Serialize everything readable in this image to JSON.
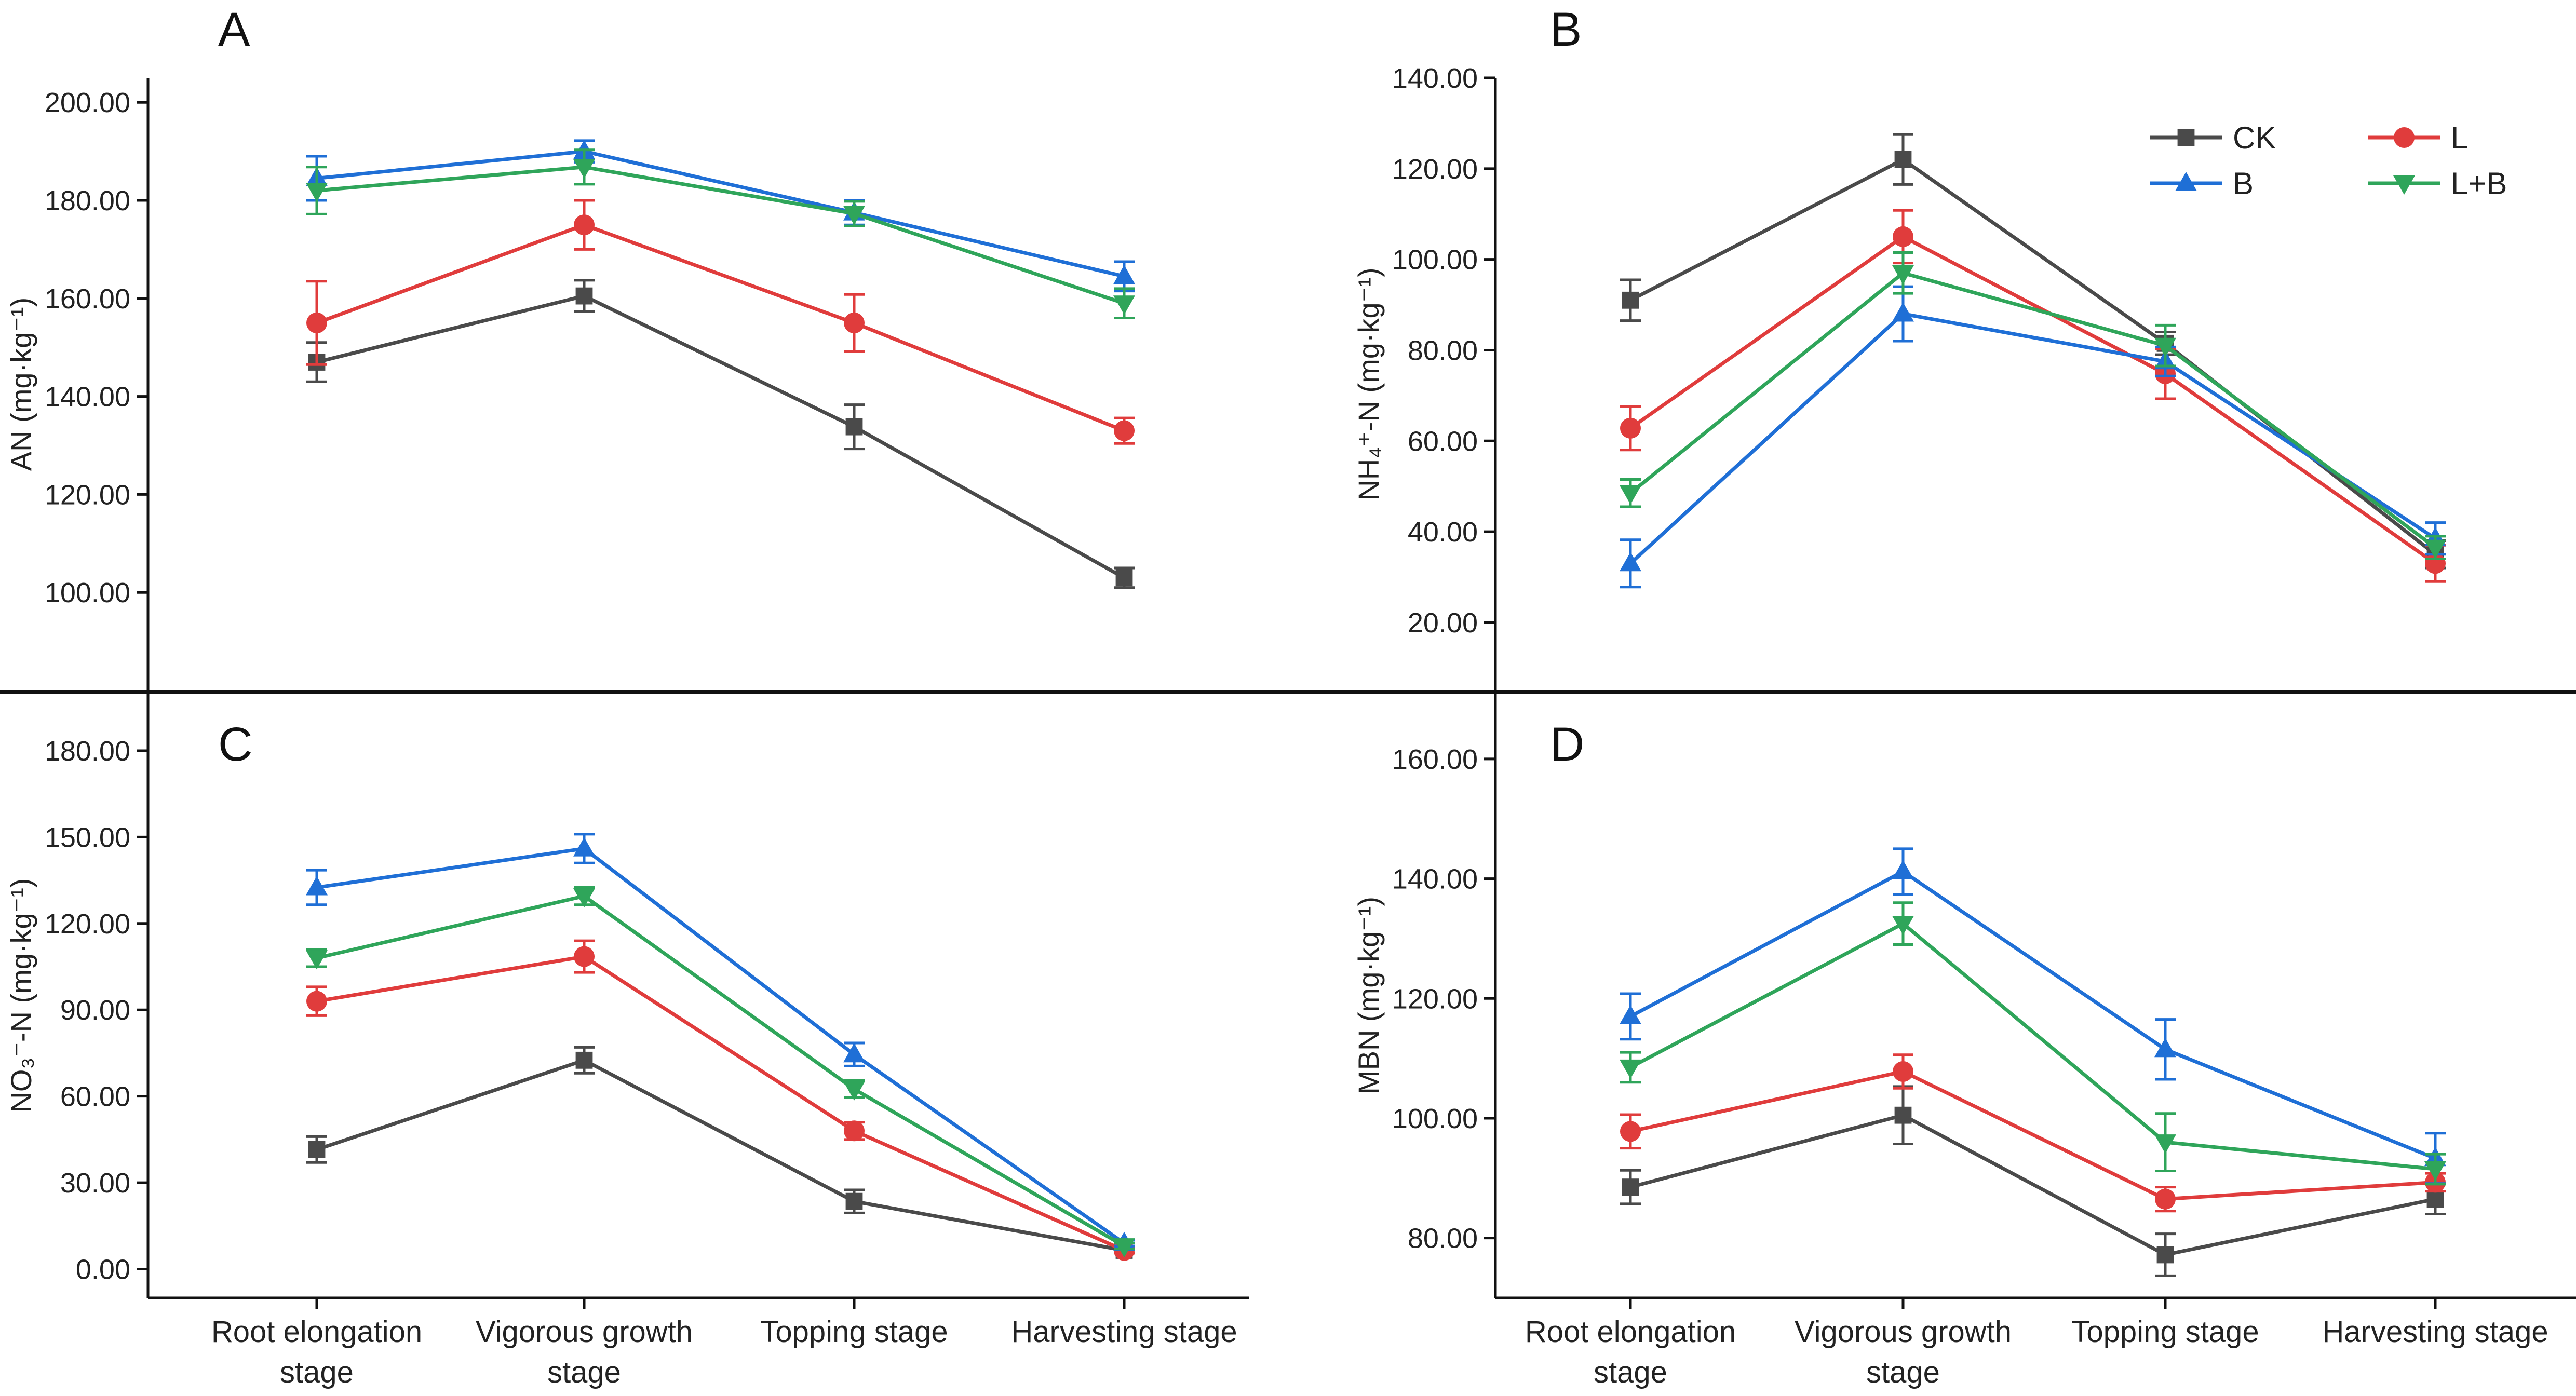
{
  "chart_data": [
    {
      "type": "line",
      "panel": "A",
      "ylabel": "AN (mg·kg⁻¹)",
      "ylim": [
        80,
        205
      ],
      "yticks": [
        100,
        120,
        140,
        160,
        180,
        200
      ],
      "ytick_labels": [
        "100.00",
        "120.00",
        "140.00",
        "160.00",
        "180.00",
        "200.00"
      ],
      "categories": [
        "Root elongation stage",
        "Vigorous growth stage",
        "Topping stage",
        "Harvesting stage"
      ],
      "series": [
        {
          "name": "CK",
          "values": [
            147,
            160.5,
            133.8,
            103
          ],
          "errors": [
            4,
            3.2,
            4.5,
            2
          ]
        },
        {
          "name": "L",
          "values": [
            155,
            175,
            155,
            133
          ],
          "errors": [
            8.5,
            5,
            5.8,
            2.6
          ]
        },
        {
          "name": "B",
          "values": [
            184.5,
            190,
            177.5,
            164.5
          ],
          "errors": [
            4.5,
            2.2,
            2.5,
            3
          ]
        },
        {
          "name": "L+B",
          "values": [
            182,
            186.8,
            177.3,
            159
          ],
          "errors": [
            4.8,
            3.5,
            2.5,
            3
          ]
        }
      ]
    },
    {
      "type": "line",
      "panel": "B",
      "ylabel": "NH₄⁺-N (mg·kg⁻¹)",
      "ylim": [
        5,
        140
      ],
      "yticks": [
        20,
        40,
        60,
        80,
        100,
        120,
        140
      ],
      "ytick_labels": [
        "20.00",
        "40.00",
        "60.00",
        "80.00",
        "100.00",
        "120.00",
        "140.00"
      ],
      "categories": [
        "Root elongation stage",
        "Vigorous growth stage",
        "Topping stage",
        "Harvesting stage"
      ],
      "series": [
        {
          "name": "CK",
          "values": [
            91,
            122,
            81.5,
            35
          ],
          "errors": [
            4.5,
            5.5,
            2.5,
            3
          ]
        },
        {
          "name": "L",
          "values": [
            62.8,
            105,
            74.8,
            33
          ],
          "errors": [
            4.8,
            5.8,
            5.5,
            4
          ]
        },
        {
          "name": "B",
          "values": [
            33,
            88,
            77.5,
            38.5
          ],
          "errors": [
            5.2,
            6,
            3.2,
            3.5
          ]
        },
        {
          "name": "L+B",
          "values": [
            48.5,
            97,
            81,
            36.5
          ],
          "errors": [
            3,
            4.5,
            4.5,
            2.5
          ]
        }
      ]
    },
    {
      "type": "line",
      "panel": "C",
      "ylabel": "NO₃⁻-N (mg·kg⁻¹)",
      "ylim": [
        -10,
        200
      ],
      "yticks": [
        0,
        30,
        60,
        90,
        120,
        150,
        180
      ],
      "ytick_labels": [
        "0.00",
        "30.00",
        "60.00",
        "90.00",
        "120.00",
        "150.00",
        "180.00"
      ],
      "categories": [
        "Root elongation stage",
        "Vigorous growth stage",
        "Topping stage",
        "Harvesting stage"
      ],
      "series": [
        {
          "name": "CK",
          "values": [
            41.5,
            72.5,
            23.5,
            6.5
          ],
          "errors": [
            4.5,
            4.5,
            4,
            1
          ]
        },
        {
          "name": "L",
          "values": [
            93,
            108.5,
            48,
            6.5
          ],
          "errors": [
            5,
            5.5,
            3,
            1
          ]
        },
        {
          "name": "B",
          "values": [
            132.5,
            146,
            74.5,
            9
          ],
          "errors": [
            6,
            5,
            4,
            1
          ]
        },
        {
          "name": "L+B",
          "values": [
            108,
            129.5,
            62.5,
            8
          ],
          "errors": [
            3,
            3,
            3,
            1
          ]
        }
      ]
    },
    {
      "type": "line",
      "panel": "D",
      "ylabel": "MBN (mg·kg⁻¹)",
      "ylim": [
        70,
        171
      ],
      "yticks": [
        80,
        100,
        120,
        140,
        160
      ],
      "ytick_labels": [
        "80.00",
        "100.00",
        "120.00",
        "140.00",
        "160.00"
      ],
      "categories": [
        "Root elongation stage",
        "Vigorous growth stage",
        "Topping stage",
        "Harvesting stage"
      ],
      "series": [
        {
          "name": "CK",
          "values": [
            88.5,
            100.5,
            77.2,
            86.5
          ],
          "errors": [
            2.8,
            4.8,
            3.5,
            2.5
          ]
        },
        {
          "name": "L",
          "values": [
            97.8,
            107.8,
            86.5,
            89.3
          ],
          "errors": [
            2.8,
            2.8,
            2,
            1.5
          ]
        },
        {
          "name": "B",
          "values": [
            117,
            141.2,
            111.5,
            93.3
          ],
          "errors": [
            3.8,
            3.8,
            5,
            4.2
          ]
        },
        {
          "name": "L+B",
          "values": [
            108.5,
            132.5,
            96,
            91.5
          ],
          "errors": [
            2.5,
            3.5,
            4.8,
            2.5
          ]
        }
      ]
    }
  ],
  "categories_display": [
    [
      "Root elongation",
      "stage"
    ],
    [
      "Vigorous growth",
      "stage"
    ],
    [
      "Topping stage"
    ],
    [
      "Harvesting stage"
    ]
  ],
  "legend": {
    "entries": [
      {
        "name": "CK",
        "color": "#4a4a4a",
        "marker": "square"
      },
      {
        "name": "L",
        "color": "#e03c3c",
        "marker": "circle"
      },
      {
        "name": "B",
        "color": "#1f6fd6",
        "marker": "triangle-up"
      },
      {
        "name": "L+B",
        "color": "#2fa55a",
        "marker": "triangle-down"
      }
    ]
  },
  "colors": {
    "CK": "#4a4a4a",
    "L": "#e03c3c",
    "B": "#1f6fd6",
    "L+B": "#2fa55a"
  }
}
